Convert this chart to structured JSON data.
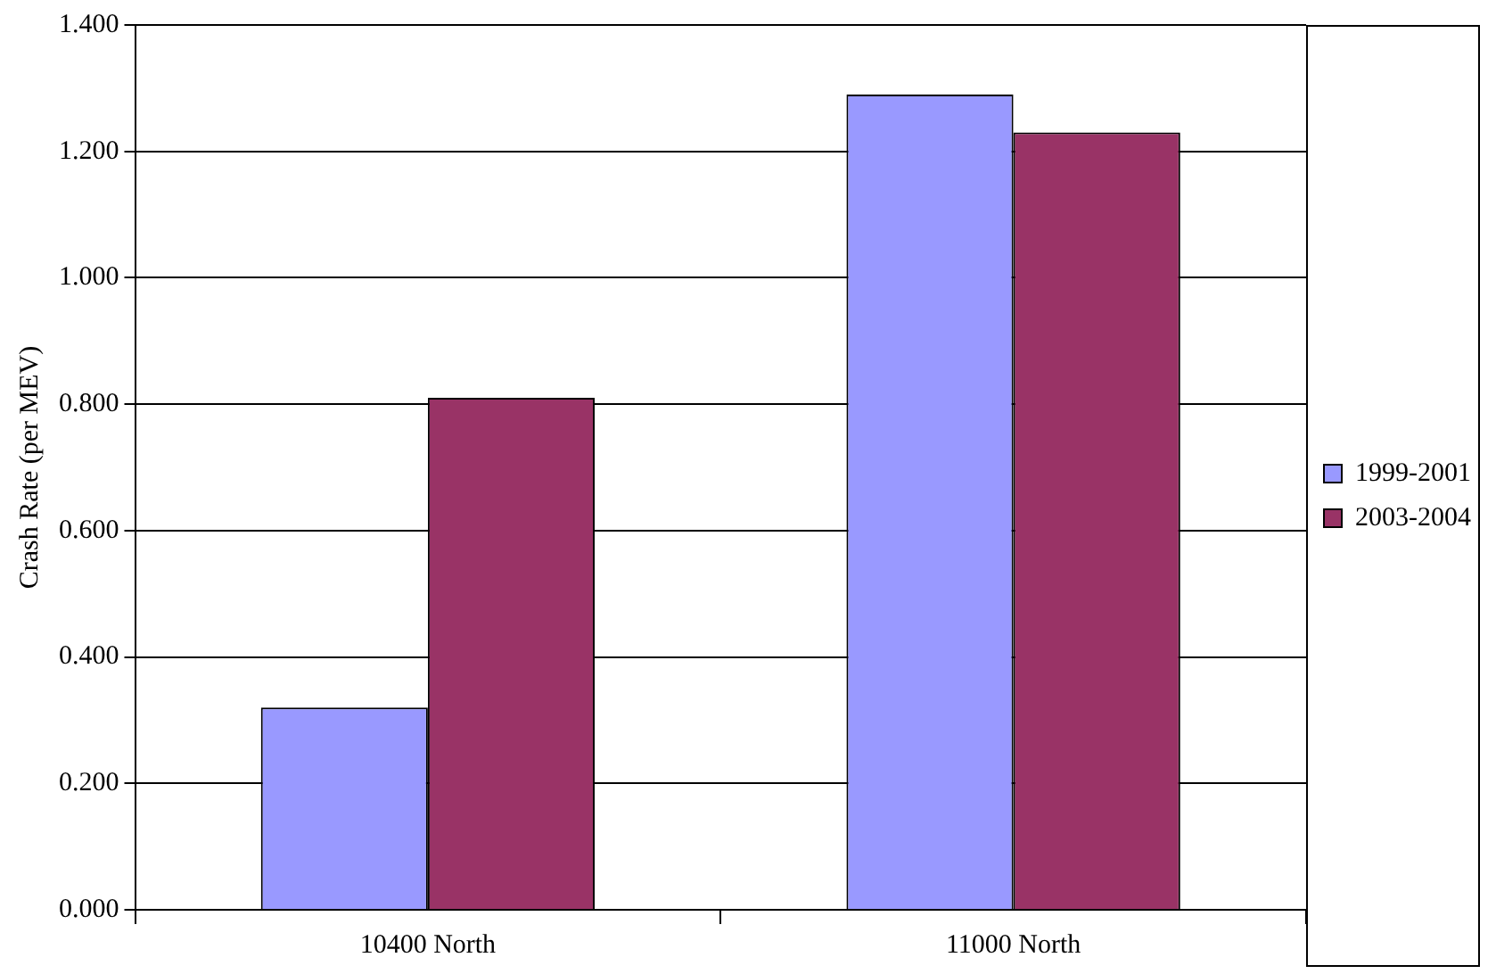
{
  "chart_data": {
    "type": "bar",
    "ylabel": "Crash Rate (per MEV)",
    "categories": [
      "10400 North",
      "11000 North"
    ],
    "series": [
      {
        "name": "1999-2001",
        "color": "#9999ff",
        "values": [
          0.32,
          1.29
        ]
      },
      {
        "name": "2003-2004",
        "color": "#993366",
        "values": [
          0.81,
          1.23
        ]
      }
    ],
    "ylim": [
      0,
      1.4
    ],
    "yticks": [
      {
        "value": 0,
        "label": "0.000"
      },
      {
        "value": 0.2,
        "label": "0.200"
      },
      {
        "value": 0.4,
        "label": "0.400"
      },
      {
        "value": 0.6,
        "label": "0.600"
      },
      {
        "value": 0.8,
        "label": "0.800"
      },
      {
        "value": 1,
        "label": "1.000"
      },
      {
        "value": 1.2,
        "label": "1.200"
      },
      {
        "value": 1.4,
        "label": "1.400"
      }
    ],
    "grid": "y",
    "legend": "right"
  }
}
